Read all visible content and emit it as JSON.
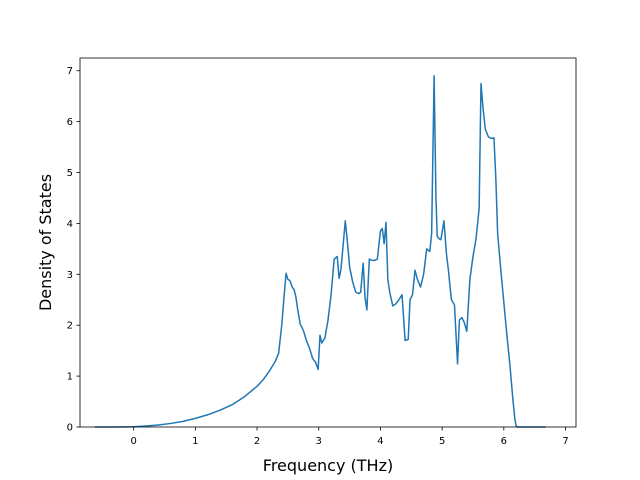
{
  "chart_data": {
    "type": "line",
    "title": "",
    "xlabel": "Frequency (THz)",
    "ylabel": "Density of States",
    "xlim": [
      -0.87,
      7.17
    ],
    "ylim": [
      0,
      7.25
    ],
    "xticks": [
      0,
      1,
      2,
      3,
      4,
      5,
      6,
      7
    ],
    "yticks": [
      0,
      1,
      2,
      3,
      4,
      5,
      6,
      7
    ],
    "grid": false,
    "line_color": "#1f77b4",
    "series": [
      {
        "x": [
          -0.63,
          -0.3,
          0.0,
          0.2,
          0.4,
          0.6,
          0.8,
          1.0,
          1.2,
          1.4,
          1.6,
          1.8,
          2.0,
          2.1,
          2.2,
          2.3,
          2.35,
          2.4,
          2.44,
          2.47,
          2.5,
          2.53,
          2.57,
          2.6,
          2.63,
          2.66,
          2.7,
          2.75,
          2.8,
          2.85,
          2.9,
          2.95,
          2.99,
          3.02,
          3.05,
          3.1,
          3.15,
          3.2,
          3.25,
          3.3,
          3.33,
          3.36,
          3.39,
          3.43,
          3.46,
          3.5,
          3.55,
          3.6,
          3.65,
          3.68,
          3.72,
          3.75,
          3.78,
          3.82,
          3.85,
          3.9,
          3.95,
          4.0,
          4.03,
          4.06,
          4.09,
          4.12,
          4.15,
          4.2,
          4.25,
          4.3,
          4.35,
          4.4,
          4.45,
          4.48,
          4.52,
          4.56,
          4.6,
          4.65,
          4.7,
          4.75,
          4.8,
          4.83,
          4.87,
          4.9,
          4.92,
          4.95,
          4.98,
          5.03,
          5.07,
          5.1,
          5.15,
          5.2,
          5.25,
          5.28,
          5.32,
          5.36,
          5.4,
          5.45,
          5.5,
          5.55,
          5.6,
          5.63,
          5.66,
          5.7,
          5.75,
          5.8,
          5.84,
          5.87,
          5.9,
          5.95,
          6.0,
          6.05,
          6.1,
          6.15,
          6.18,
          6.2,
          6.22,
          6.3,
          6.5,
          6.68
        ],
        "values": [
          0,
          0,
          0.005,
          0.02,
          0.04,
          0.07,
          0.11,
          0.17,
          0.24,
          0.33,
          0.44,
          0.6,
          0.8,
          0.93,
          1.1,
          1.3,
          1.45,
          2.0,
          2.6,
          3.02,
          2.9,
          2.88,
          2.75,
          2.7,
          2.55,
          2.3,
          2.02,
          1.9,
          1.7,
          1.55,
          1.35,
          1.27,
          1.13,
          1.8,
          1.65,
          1.75,
          2.1,
          2.6,
          3.3,
          3.35,
          2.92,
          3.1,
          3.5,
          4.05,
          3.7,
          3.15,
          2.85,
          2.65,
          2.62,
          2.65,
          3.22,
          2.55,
          2.3,
          3.3,
          3.28,
          3.27,
          3.3,
          3.85,
          3.9,
          3.6,
          4.02,
          2.9,
          2.65,
          2.38,
          2.42,
          2.5,
          2.6,
          1.7,
          1.72,
          2.5,
          2.6,
          3.08,
          2.9,
          2.75,
          3.0,
          3.5,
          3.45,
          3.8,
          6.9,
          4.5,
          3.75,
          3.7,
          3.68,
          4.05,
          3.4,
          3.1,
          2.5,
          2.4,
          1.24,
          2.1,
          2.15,
          2.05,
          1.88,
          2.9,
          3.35,
          3.7,
          4.3,
          6.75,
          6.3,
          5.85,
          5.7,
          5.67,
          5.68,
          4.9,
          3.8,
          3.1,
          2.45,
          1.8,
          1.2,
          0.5,
          0.15,
          0.02,
          0,
          0,
          0,
          0
        ]
      }
    ]
  }
}
